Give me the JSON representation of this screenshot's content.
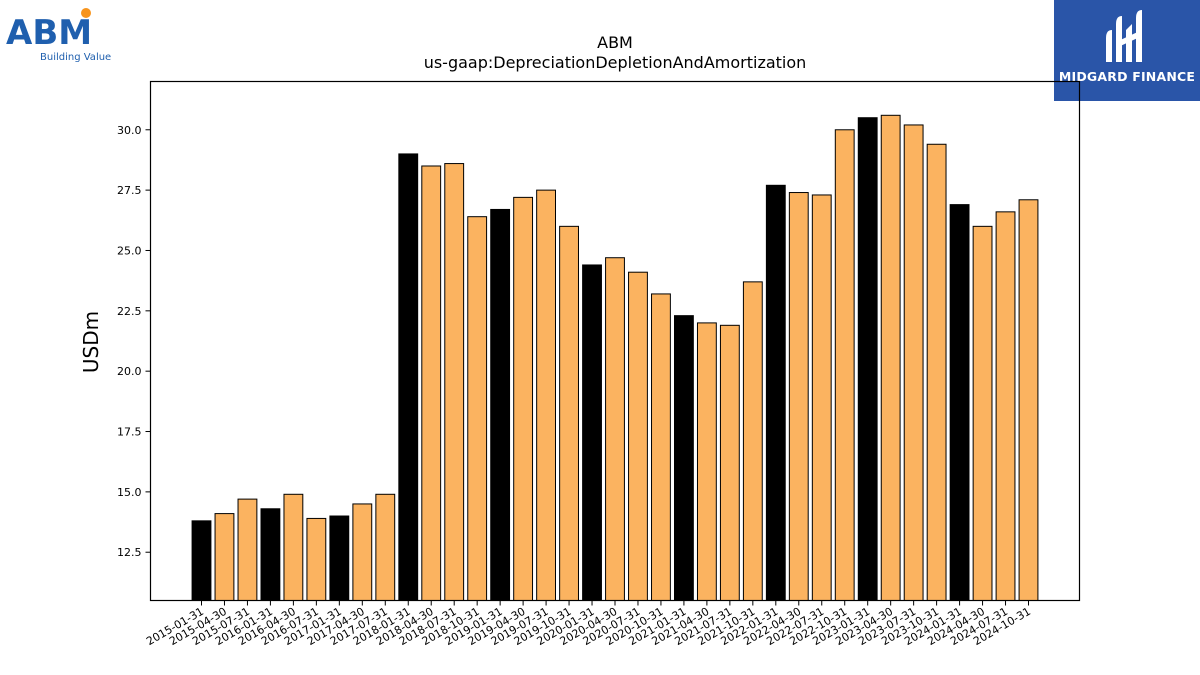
{
  "logos": {
    "left_brand": "ABM",
    "left_tagline": "Building Value",
    "right_brand": "MIDGARD FINANCE"
  },
  "colors": {
    "bar_fill": "#fbb360",
    "bar_highlight": "#000000",
    "bar_edge": "#000000",
    "abm_blue": "#1f5fae",
    "abm_dot": "#f7941d",
    "midgard_bg": "#2a55a8"
  },
  "chart_data": {
    "type": "bar",
    "title": "ABM",
    "subtitle": "us-gaap:DepreciationDepletionAndAmortization",
    "xlabel": "",
    "ylabel": "USDm",
    "ylim": [
      10.5,
      32.0
    ],
    "yticks": [
      12.5,
      15.0,
      17.5,
      20.0,
      22.5,
      25.0,
      27.5,
      30.0
    ],
    "grid": false,
    "legend": "none",
    "categories": [
      "2015-01-31",
      "2015-04-30",
      "2015-07-31",
      "2016-01-31",
      "2016-04-30",
      "2016-07-31",
      "2017-01-31",
      "2017-04-30",
      "2017-07-31",
      "2018-01-31",
      "2018-04-30",
      "2018-07-31",
      "2018-10-31",
      "2019-01-31",
      "2019-04-30",
      "2019-07-31",
      "2019-10-31",
      "2020-01-31",
      "2020-04-30",
      "2020-07-31",
      "2020-10-31",
      "2021-01-31",
      "2021-04-30",
      "2021-07-31",
      "2021-10-31",
      "2022-01-31",
      "2022-04-30",
      "2022-07-31",
      "2022-10-31",
      "2023-01-31",
      "2023-04-30",
      "2023-07-31",
      "2023-10-31",
      "2024-01-31",
      "2024-04-30",
      "2024-07-31",
      "2024-10-31"
    ],
    "values": [
      13.8,
      14.1,
      14.7,
      14.3,
      14.9,
      13.9,
      14.0,
      14.5,
      14.9,
      29.0,
      28.5,
      28.6,
      26.4,
      26.7,
      27.2,
      27.5,
      26.0,
      24.4,
      24.7,
      24.1,
      23.2,
      22.3,
      22.0,
      21.9,
      23.7,
      27.7,
      27.4,
      27.3,
      30.0,
      30.5,
      30.6,
      30.2,
      29.4,
      26.9,
      26.0,
      26.6,
      27.1
    ],
    "highlight_indices": [
      0,
      3,
      6,
      9,
      13,
      17,
      21,
      25,
      29,
      33
    ]
  }
}
